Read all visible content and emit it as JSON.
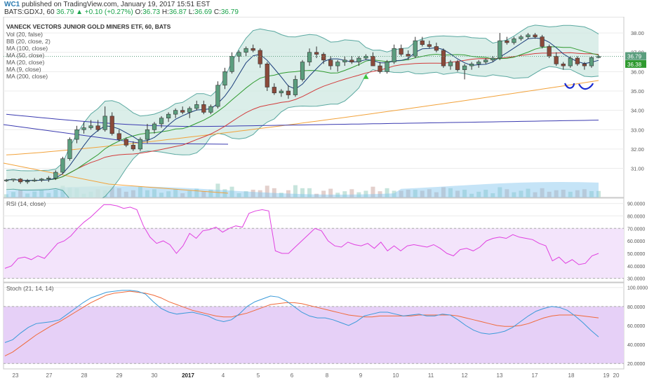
{
  "header": {
    "user": "WC1",
    "published": "published on TradingView.com, January 19, 2017 15:51 EST",
    "symbol_line": "BATS:GDXJ, 60",
    "last": "36.79",
    "change": "+0.10 (+0.27%)",
    "o_label": "O:",
    "o": "36.73",
    "h_label": "H:",
    "h": "36.87",
    "l_label": "L:",
    "l": "36.69",
    "c_label": "C:",
    "c": "36.79"
  },
  "legend": {
    "title": "VANECK VECTORS JUNIOR GOLD MINERS ETF, 60, BATS",
    "items": [
      "Vol (20, false)",
      "BB (20, close, 2)",
      "MA (100, close)",
      "MA (50, close)",
      "MA (20, close)",
      "MA (9, close)",
      "MA (200, close)"
    ]
  },
  "price_axis": {
    "ticks": [
      "38.00",
      "37.00",
      "36.00",
      "35.00",
      "34.00",
      "33.00",
      "32.00",
      "31.00"
    ],
    "tag_last": "36.79",
    "tag_ma": "36.38"
  },
  "rsi_panel": {
    "label": "RSI (14, close)",
    "ticks": [
      "90.0000",
      "80.0000",
      "70.0000",
      "60.0000",
      "50.0000",
      "40.0000",
      "30.0000"
    ]
  },
  "stoch_panel": {
    "label": "Stoch (21, 14, 14)",
    "ticks": [
      "100.0000",
      "80.0000",
      "60.0000",
      "40.0000",
      "20.0000"
    ]
  },
  "time_axis": {
    "labels": [
      "23",
      "27",
      "28",
      "29",
      "30",
      "2017",
      "4",
      "5",
      "6",
      "8",
      "9",
      "10",
      "11",
      "12",
      "13",
      "17",
      "18",
      "19",
      "20"
    ]
  },
  "colors": {
    "up_candle": "#5b9e7e",
    "down_candle": "#8b4a3a",
    "bb_fill": "#cfe8e2",
    "bb_line": "#5aa8a0",
    "ma20": "#2f9a2f",
    "ma9": "#1b3d7a",
    "ma50": "#d23b3b",
    "ma100": "#f2a23a",
    "ma200": "#3a3ab0",
    "rsi": "#e040e0",
    "stoch_k": "#3a9ad9",
    "stoch_d": "#f06a3a",
    "bands_fill": "#f3e4fb",
    "stoch_fill": "#e6d0f7"
  },
  "chart_data": {
    "type": "candlestick",
    "x_labels": [
      "23",
      "27",
      "28",
      "29",
      "30",
      "2017",
      "4",
      "5",
      "6",
      "8",
      "9",
      "10",
      "11",
      "12",
      "13",
      "17",
      "18",
      "19",
      "20"
    ],
    "candles": [
      [
        30.4,
        30.45,
        30.3,
        30.4
      ],
      [
        30.4,
        30.45,
        30.3,
        30.45
      ],
      [
        30.45,
        30.5,
        30.2,
        30.3
      ],
      [
        30.3,
        30.45,
        30.2,
        30.35
      ],
      [
        30.35,
        30.5,
        30.3,
        30.4
      ],
      [
        30.4,
        30.5,
        30.3,
        30.45
      ],
      [
        30.45,
        30.6,
        30.3,
        30.5
      ],
      [
        30.5,
        30.9,
        30.4,
        30.8
      ],
      [
        30.8,
        31.6,
        30.7,
        31.5
      ],
      [
        31.5,
        32.6,
        31.4,
        32.5
      ],
      [
        32.5,
        33.2,
        32.3,
        33.0
      ],
      [
        33.0,
        33.4,
        32.8,
        33.1
      ],
      [
        33.1,
        33.5,
        33.0,
        33.2
      ],
      [
        33.2,
        33.5,
        32.9,
        33.0
      ],
      [
        33.0,
        34.2,
        32.9,
        33.7
      ],
      [
        33.7,
        33.9,
        32.7,
        32.8
      ],
      [
        32.8,
        33.0,
        32.4,
        32.5
      ],
      [
        32.5,
        32.6,
        32.1,
        32.2
      ],
      [
        32.2,
        32.4,
        31.9,
        32.0
      ],
      [
        32.0,
        32.6,
        31.9,
        32.5
      ],
      [
        32.5,
        33.3,
        32.3,
        33.0
      ],
      [
        33.0,
        33.4,
        32.8,
        33.3
      ],
      [
        33.3,
        33.7,
        33.1,
        33.6
      ],
      [
        33.6,
        33.9,
        33.4,
        33.8
      ],
      [
        33.8,
        34.1,
        33.6,
        34.0
      ],
      [
        34.0,
        34.2,
        33.8,
        33.9
      ],
      [
        33.9,
        34.2,
        33.6,
        34.1
      ],
      [
        34.1,
        34.5,
        34.0,
        34.3
      ],
      [
        34.3,
        34.5,
        33.8,
        33.9
      ],
      [
        33.9,
        34.3,
        33.8,
        34.2
      ],
      [
        34.2,
        35.5,
        34.1,
        35.3
      ],
      [
        35.3,
        36.2,
        35.1,
        36.0
      ],
      [
        36.0,
        37.0,
        35.9,
        36.8
      ],
      [
        36.8,
        37.1,
        36.5,
        37.0
      ],
      [
        37.0,
        37.3,
        36.8,
        37.2
      ],
      [
        37.2,
        37.4,
        37.0,
        37.1
      ],
      [
        37.1,
        37.2,
        36.2,
        36.4
      ],
      [
        36.4,
        36.5,
        35.0,
        35.2
      ],
      [
        35.2,
        35.4,
        34.8,
        34.9
      ],
      [
        34.9,
        35.1,
        34.7,
        35.0
      ],
      [
        35.0,
        35.3,
        34.6,
        34.8
      ],
      [
        34.8,
        35.8,
        34.7,
        35.6
      ],
      [
        35.6,
        36.6,
        35.5,
        36.5
      ],
      [
        36.5,
        37.2,
        36.3,
        37.0
      ],
      [
        37.0,
        37.3,
        36.7,
        36.9
      ],
      [
        36.9,
        37.0,
        36.4,
        36.6
      ],
      [
        36.6,
        36.8,
        36.1,
        36.3
      ],
      [
        36.3,
        36.6,
        36.0,
        36.5
      ],
      [
        36.5,
        36.8,
        36.3,
        36.6
      ],
      [
        36.6,
        36.8,
        36.4,
        36.5
      ],
      [
        36.5,
        36.8,
        36.3,
        36.7
      ],
      [
        36.7,
        36.9,
        36.6,
        36.8
      ],
      [
        36.8,
        37.0,
        36.3,
        36.3
      ],
      [
        36.3,
        36.5,
        35.9,
        36.0
      ],
      [
        36.0,
        36.6,
        35.9,
        36.5
      ],
      [
        36.5,
        37.4,
        36.4,
        37.2
      ],
      [
        37.2,
        37.4,
        36.8,
        36.9
      ],
      [
        36.9,
        37.1,
        36.6,
        36.8
      ],
      [
        36.8,
        37.8,
        36.7,
        37.6
      ],
      [
        37.6,
        37.8,
        37.3,
        37.4
      ],
      [
        37.4,
        37.6,
        37.2,
        37.3
      ],
      [
        37.3,
        37.5,
        37.0,
        37.1
      ],
      [
        37.1,
        37.2,
        36.2,
        36.3
      ],
      [
        36.3,
        36.6,
        36.1,
        36.5
      ],
      [
        36.5,
        36.6,
        36.0,
        36.1
      ],
      [
        36.1,
        36.4,
        35.6,
        36.3
      ],
      [
        36.3,
        36.5,
        36.1,
        36.4
      ],
      [
        36.4,
        36.6,
        36.2,
        36.5
      ],
      [
        36.5,
        36.7,
        36.4,
        36.6
      ],
      [
        36.6,
        36.8,
        36.5,
        36.7
      ],
      [
        36.7,
        38.0,
        36.6,
        37.6
      ],
      [
        37.6,
        37.8,
        37.4,
        37.5
      ],
      [
        37.5,
        37.8,
        37.4,
        37.7
      ],
      [
        37.7,
        37.9,
        37.6,
        37.8
      ],
      [
        37.8,
        38.0,
        37.7,
        37.9
      ],
      [
        37.9,
        38.0,
        37.7,
        37.8
      ],
      [
        37.8,
        37.9,
        37.2,
        37.3
      ],
      [
        37.3,
        37.4,
        36.7,
        36.8
      ],
      [
        36.8,
        37.0,
        36.3,
        36.4
      ],
      [
        36.4,
        36.5,
        36.1,
        36.3
      ],
      [
        36.3,
        36.8,
        36.2,
        36.7
      ],
      [
        36.7,
        36.8,
        36.3,
        36.4
      ],
      [
        36.4,
        36.5,
        36.1,
        36.3
      ],
      [
        36.3,
        36.8,
        36.2,
        36.73
      ],
      [
        36.73,
        36.87,
        36.69,
        36.79
      ]
    ],
    "rsi": [
      38,
      40,
      46,
      47,
      45,
      48,
      46,
      52,
      58,
      60,
      64,
      70,
      75,
      79,
      84,
      89,
      89,
      88,
      86,
      87,
      85,
      72,
      63,
      58,
      60,
      57,
      50,
      56,
      66,
      62,
      68,
      69,
      71,
      67,
      70,
      72,
      71,
      82,
      84,
      85,
      84,
      52,
      50,
      50,
      55,
      60,
      65,
      70,
      68,
      60,
      56,
      55,
      59,
      57,
      56,
      58,
      54,
      59,
      52,
      56,
      52,
      56,
      57,
      56,
      55,
      57,
      54,
      50,
      48,
      53,
      54,
      52,
      55,
      60,
      62,
      63,
      62,
      65,
      63,
      62,
      61,
      58,
      56,
      44,
      47,
      42,
      45,
      41,
      42,
      48,
      50
    ],
    "stoch_k": [
      42,
      45,
      52,
      58,
      62,
      63,
      64,
      66,
      72,
      78,
      84,
      89,
      92,
      95,
      96,
      97,
      97,
      96,
      93,
      85,
      78,
      74,
      72,
      73,
      74,
      72,
      70,
      66,
      64,
      66,
      72,
      80,
      85,
      88,
      91,
      90,
      86,
      80,
      74,
      70,
      68,
      68,
      66,
      63,
      60,
      64,
      70,
      72,
      74,
      74,
      72,
      70,
      71,
      72,
      70,
      70,
      72,
      71,
      66,
      60,
      55,
      52,
      51,
      52,
      54,
      58,
      64,
      70,
      75,
      78,
      80,
      79,
      76,
      70,
      63,
      55,
      48
    ],
    "stoch_d": [
      28,
      32,
      38,
      44,
      50,
      55,
      60,
      64,
      69,
      74,
      79,
      84,
      88,
      92,
      94,
      95,
      96,
      95,
      94,
      92,
      89,
      85,
      82,
      79,
      76,
      74,
      72,
      70,
      69,
      69,
      71,
      73,
      76,
      79,
      82,
      83,
      84,
      84,
      83,
      81,
      79,
      77,
      75,
      73,
      71,
      70,
      69,
      69,
      70,
      70,
      70,
      70,
      70,
      71,
      71,
      71,
      71,
      71,
      70,
      68,
      66,
      64,
      62,
      60,
      59,
      59,
      60,
      62,
      65,
      68,
      70,
      71,
      71,
      71,
      70,
      69,
      68
    ]
  }
}
